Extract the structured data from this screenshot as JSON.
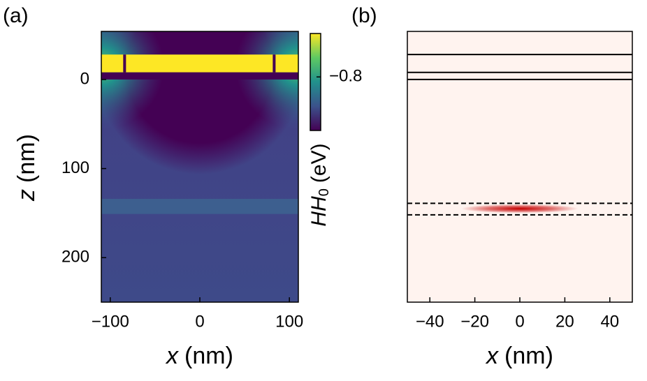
{
  "chart_data": [
    {
      "type": "heatmap",
      "panel_label": "(a)",
      "xlabel_symbol": "x",
      "xlabel_unit": "(nm)",
      "ylabel_symbol": "z",
      "ylabel_unit": "(nm)",
      "xlim": [
        -110,
        110
      ],
      "ylim": [
        250,
        -54
      ],
      "xticks": [
        {
          "value": -100,
          "label": "−100"
        },
        0,
        100
      ],
      "yticks": [
        0,
        100,
        200
      ],
      "colorbar": {
        "label_symbol": "HH",
        "label_sub": "0",
        "label_unit": "(eV)",
        "clim": [
          -0.837,
          -0.77
        ],
        "ticks": [
          {
            "value": -0.8,
            "label": "−0.8"
          }
        ],
        "colormap": [
          "#440154",
          "#3b528b",
          "#21918c",
          "#5ec962",
          "#fde725"
        ]
      },
      "regions": [
        {
          "zlim": [
            -28,
            -8
          ],
          "color": "#fde725"
        },
        {
          "zlim": [
            -8,
            0
          ],
          "color": "#440154"
        },
        {
          "zlim": [
            134,
            151
          ],
          "color": "#3d5f8f"
        }
      ],
      "gate_gaps": [
        -84,
        83
      ]
    },
    {
      "type": "density",
      "panel_label": "(b)",
      "xlabel_symbol": "x",
      "xlabel_unit": "(nm)",
      "xlim": [
        -50,
        50
      ],
      "ylim": [
        250,
        -54
      ],
      "xticks": [
        {
          "value": -40,
          "label": "−40"
        },
        {
          "value": -20,
          "label": "−20"
        },
        0,
        20,
        40
      ],
      "background": "#fff3ef",
      "solid_lines": [
        -28,
        -8,
        0
      ],
      "dashed_lines": [
        139,
        152
      ],
      "density": {
        "center": [
          0,
          145
        ],
        "sigma": [
          13,
          2.5
        ],
        "color": "#c40000"
      }
    }
  ]
}
